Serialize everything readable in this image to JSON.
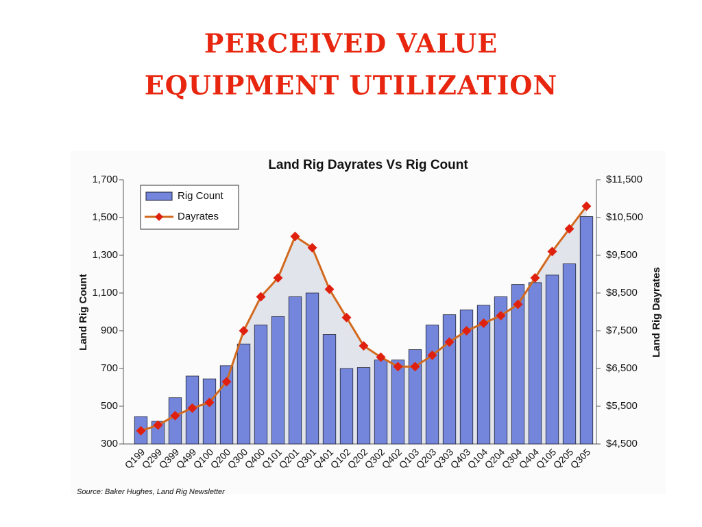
{
  "slide_title": [
    "PERCEIVED VALUE",
    "EQUIPMENT UTILIZATION"
  ],
  "chart_data": {
    "type": "bar",
    "title": "Land Rig Dayrates Vs Rig Count",
    "ylabel": "Land Rig Count",
    "y2label": "Land Rig Dayrates",
    "source": "Source: Baker Hughes, Land Rig Newsletter",
    "categories": [
      "Q199",
      "Q299",
      "Q399",
      "Q499",
      "Q100",
      "Q200",
      "Q300",
      "Q400",
      "Q101",
      "Q201",
      "Q301",
      "Q401",
      "Q102",
      "Q202",
      "Q302",
      "Q402",
      "Q103",
      "Q203",
      "Q303",
      "Q403",
      "Q104",
      "Q204",
      "Q304",
      "Q404",
      "Q105",
      "Q205",
      "Q305"
    ],
    "series": [
      {
        "name": "Rig Count",
        "type": "bar",
        "color": "#7386dc",
        "values": [
          445,
          420,
          545,
          660,
          645,
          715,
          830,
          930,
          975,
          1080,
          1100,
          880,
          700,
          705,
          745,
          745,
          800,
          930,
          985,
          1010,
          1035,
          1080,
          1145,
          1155,
          1195,
          1255,
          1505
        ]
      },
      {
        "name": "Dayrates",
        "type": "line",
        "axis": "y2",
        "color": "#d2691e",
        "marker_color": "#e0200f",
        "values": [
          4850,
          5000,
          5250,
          5450,
          5600,
          6150,
          7500,
          8400,
          8900,
          10000,
          9700,
          8600,
          7850,
          7100,
          6800,
          6550,
          6550,
          6850,
          7200,
          7500,
          7700,
          7900,
          8200,
          8900,
          9600,
          10200,
          10800
        ]
      }
    ],
    "ylim": [
      300,
      1700
    ],
    "yticks": [
      300,
      500,
      700,
      900,
      {
        "value": 1100,
        "label": "1,100"
      },
      {
        "value": 1300,
        "label": "1,300"
      },
      {
        "value": 1500,
        "label": "1,500"
      },
      {
        "value": 1700,
        "label": "1,700"
      }
    ],
    "y2lim": [
      4500,
      11500
    ],
    "y2ticks": [
      {
        "value": 4500,
        "label": "$4,500"
      },
      {
        "value": 5500,
        "label": "$5,500"
      },
      {
        "value": 6500,
        "label": "$6,500"
      },
      {
        "value": 7500,
        "label": "$7,500"
      },
      {
        "value": 8500,
        "label": "$8,500"
      },
      {
        "value": 9500,
        "label": "$9,500"
      },
      {
        "value": 10500,
        "label": "$10,500"
      },
      {
        "value": 11500,
        "label": "$11,500"
      }
    ],
    "legend": "upper left"
  }
}
